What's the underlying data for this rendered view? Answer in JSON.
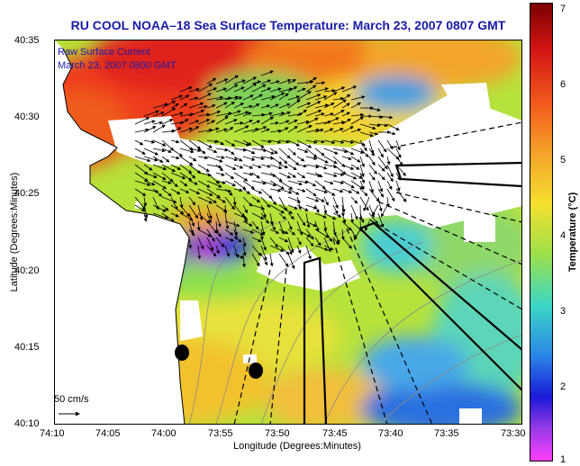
{
  "title": "RU COOL  NOAA–18  Sea Surface Temperature:  March 23, 2007 0807 GMT",
  "annotations": {
    "line1": "Raw Surface Current",
    "line2": "March 23, 2007 0800 GMT"
  },
  "axes": {
    "xlabel": "Longitude (Degrees:Minutes)",
    "ylabel": "Latitude (Degrees:Minutes)",
    "xticks": [
      "74:10",
      "74:05",
      "74:00",
      "73:55",
      "73:50",
      "73:45",
      "73:40",
      "73:35",
      "73:30"
    ],
    "yticks": [
      "40:35",
      "40:30",
      "40:25",
      "40:20",
      "40:15",
      "40:10"
    ]
  },
  "colorbar": {
    "label": "Temperature (°C)",
    "ticks": [
      "7",
      "6",
      "5",
      "4",
      "3",
      "2",
      "1"
    ],
    "min": 1,
    "max": 7
  },
  "scale_label": "50 cm/s",
  "colors": {
    "title": "#1a1aa8",
    "land": "#ffffff",
    "coast": "#000000"
  }
}
